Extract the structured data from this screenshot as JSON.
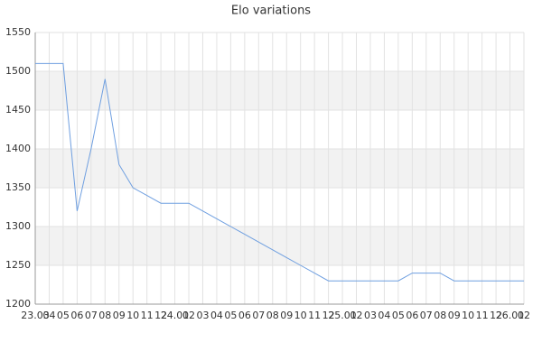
{
  "chart_data": {
    "type": "line",
    "title": "Elo variations",
    "categories": [
      "23.03",
      "04",
      "05",
      "06",
      "07",
      "08",
      "09",
      "10",
      "11",
      "12",
      "24.01",
      "02",
      "03",
      "04",
      "05",
      "06",
      "07",
      "08",
      "09",
      "10",
      "11",
      "12",
      "25.01",
      "02",
      "03",
      "04",
      "05",
      "06",
      "07",
      "08",
      "09",
      "10",
      "11",
      "12",
      "26.01",
      "02"
    ],
    "values": [
      1510,
      1510,
      1510,
      1320,
      1400,
      1490,
      1380,
      1350,
      1340,
      1330,
      1330,
      1330,
      1320,
      1310,
      1300,
      1290,
      1280,
      1270,
      1260,
      1250,
      1240,
      1230,
      1230,
      1230,
      1230,
      1230,
      1230,
      1240,
      1240,
      1240,
      1230,
      1230,
      1230,
      1230,
      1230,
      1230
    ],
    "color": "#6f9fe0",
    "ylim": [
      1200,
      1550
    ],
    "yticks": [
      1200,
      1250,
      1300,
      1350,
      1400,
      1450,
      1500,
      1550
    ],
    "grid": true
  }
}
